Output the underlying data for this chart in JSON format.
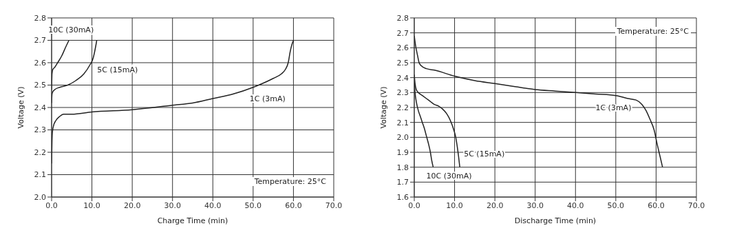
{
  "chart_data": [
    {
      "type": "line",
      "xlabel": "Charge Time (min)",
      "ylabel": "Voltage (V)",
      "annotations": [
        "Temperature: 25°C"
      ],
      "grid": true,
      "marker": "none",
      "line_style": "solid",
      "xlim": [
        0,
        70
      ],
      "xticks": [
        {
          "value": 0,
          "label": "0.0"
        },
        {
          "value": 10,
          "label": "10.0"
        },
        {
          "value": 20,
          "label": "20.0"
        },
        {
          "value": 30,
          "label": "30.0"
        },
        {
          "value": 40,
          "label": "40.0"
        },
        {
          "value": 50,
          "label": "50.0"
        },
        {
          "value": 60,
          "label": "60.0"
        },
        {
          "value": 70,
          "label": "70.0"
        }
      ],
      "ylim": [
        2.0,
        2.8
      ],
      "yticks": [
        {
          "value": 2.0,
          "label": "2.0"
        },
        2.1,
        2.2,
        2.3,
        2.4,
        2.5,
        2.6,
        2.7,
        2.8
      ],
      "series": [
        {
          "name": "10C (30mA)",
          "color": "#222222",
          "x": [
            0,
            0.05,
            0.1,
            0.3,
            0.8,
            1.5,
            2.5,
            3.5,
            4.3
          ],
          "values": [
            2.48,
            2.52,
            2.55,
            2.57,
            2.58,
            2.6,
            2.63,
            2.67,
            2.7
          ]
        },
        {
          "name": "5C (15mA)",
          "color": "#222222",
          "x": [
            0,
            0.1,
            0.3,
            0.8,
            2,
            4,
            6,
            8,
            9.5,
            10.3,
            10.8,
            11.2
          ],
          "values": [
            2.42,
            2.46,
            2.47,
            2.48,
            2.49,
            2.5,
            2.52,
            2.55,
            2.59,
            2.62,
            2.66,
            2.7
          ]
        },
        {
          "name": "1C (3mA)",
          "color": "#222222",
          "x": [
            0,
            0.1,
            0.2,
            0.5,
            1,
            2,
            3,
            5,
            10,
            20,
            30,
            35,
            40,
            45,
            50,
            55,
            57,
            58,
            58.7,
            59.2,
            59.6,
            60
          ],
          "values": [
            2.15,
            2.25,
            2.29,
            2.32,
            2.34,
            2.36,
            2.37,
            2.37,
            2.38,
            2.39,
            2.41,
            2.42,
            2.44,
            2.46,
            2.49,
            2.53,
            2.55,
            2.57,
            2.6,
            2.65,
            2.68,
            2.7
          ]
        }
      ]
    },
    {
      "type": "line",
      "xlabel": "Discharge Time (min)",
      "ylabel": "Voltage (V)",
      "annotations": [
        "Temperature: 25°C"
      ],
      "grid": true,
      "marker": "none",
      "line_style": "solid",
      "xlim": [
        0,
        70
      ],
      "xticks": [
        {
          "value": 0,
          "label": "0.0"
        },
        {
          "value": 10,
          "label": "10.0"
        },
        {
          "value": 20,
          "label": "20.0"
        },
        {
          "value": 30,
          "label": "30.0"
        },
        {
          "value": 40,
          "label": "40.0"
        },
        {
          "value": 50,
          "label": "50.0"
        },
        {
          "value": 60,
          "label": "60.0"
        },
        {
          "value": 70,
          "label": "70.0"
        }
      ],
      "ylim": [
        1.6,
        2.8
      ],
      "yticks": [
        1.6,
        1.7,
        1.8,
        1.9,
        {
          "value": 2.0,
          "label": "2.0"
        },
        2.1,
        2.2,
        2.3,
        2.4,
        2.5,
        2.6,
        2.7,
        2.8
      ],
      "series": [
        {
          "name": "1C (3mA)",
          "color": "#222222",
          "x": [
            0,
            0.3,
            0.8,
            1.2,
            1.7,
            3,
            5,
            10,
            15,
            20,
            25,
            30,
            35,
            40,
            45,
            50,
            53,
            55,
            56.5,
            57.5,
            58.5,
            59.5,
            60.3,
            61,
            61.6
          ],
          "values": [
            2.68,
            2.62,
            2.55,
            2.5,
            2.48,
            2.46,
            2.45,
            2.41,
            2.38,
            2.36,
            2.34,
            2.32,
            2.31,
            2.3,
            2.29,
            2.28,
            2.26,
            2.25,
            2.22,
            2.18,
            2.12,
            2.05,
            1.95,
            1.87,
            1.8
          ]
        },
        {
          "name": "5C (15mA)",
          "color": "#222222",
          "x": [
            0,
            0.2,
            0.5,
            1,
            2,
            3,
            4,
            5,
            6,
            7,
            8,
            9,
            9.8,
            10.3,
            10.6,
            11,
            11.3
          ],
          "values": [
            2.42,
            2.36,
            2.32,
            2.3,
            2.28,
            2.26,
            2.24,
            2.22,
            2.21,
            2.19,
            2.16,
            2.11,
            2.05,
            2.0,
            1.95,
            1.87,
            1.8
          ]
        },
        {
          "name": "10C (30mA)",
          "color": "#222222",
          "x": [
            0,
            0.2,
            0.5,
            1,
            1.5,
            2,
            2.5,
            3,
            3.5,
            4,
            4.3,
            4.7
          ],
          "values": [
            2.38,
            2.3,
            2.24,
            2.18,
            2.14,
            2.1,
            2.06,
            2.01,
            1.96,
            1.9,
            1.85,
            1.8
          ]
        }
      ]
    }
  ]
}
